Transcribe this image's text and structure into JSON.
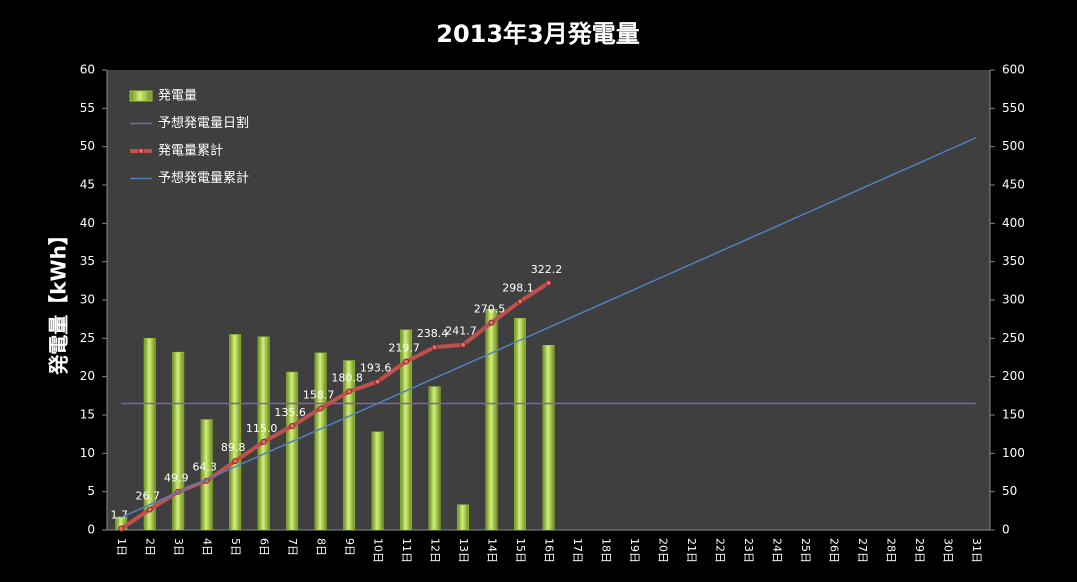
{
  "chart_data": {
    "type": "bar-line",
    "title": "2013年3月発電量",
    "y_label": "発電量【kWh】",
    "categories": [
      "1日",
      "2日",
      "3日",
      "4日",
      "5日",
      "6日",
      "7日",
      "8日",
      "9日",
      "10日",
      "11日",
      "12日",
      "13日",
      "14日",
      "15日",
      "16日",
      "17日",
      "18日",
      "19日",
      "20日",
      "21日",
      "22日",
      "23日",
      "24日",
      "25日",
      "26日",
      "27日",
      "28日",
      "29日",
      "30日",
      "31日"
    ],
    "ylim": [
      0,
      60
    ],
    "yticks": [
      0,
      5,
      10,
      15,
      20,
      25,
      30,
      35,
      40,
      45,
      50,
      55,
      60
    ],
    "y2lim": [
      0,
      600
    ],
    "y2ticks": [
      0,
      50,
      100,
      150,
      200,
      250,
      300,
      350,
      400,
      450,
      500,
      550,
      600
    ],
    "legend": "top-left",
    "series": [
      {
        "name": "発電量",
        "kind": "bar",
        "color": "#9acd32",
        "values": [
          1.7,
          25.0,
          23.2,
          14.4,
          25.5,
          25.2,
          20.6,
          23.1,
          22.1,
          12.8,
          26.1,
          18.7,
          3.3,
          28.8,
          27.6,
          24.1,
          null,
          null,
          null,
          null,
          null,
          null,
          null,
          null,
          null,
          null,
          null,
          null,
          null,
          null,
          null
        ]
      },
      {
        "name": "予想発電量日割",
        "kind": "line",
        "color": "#8064a2",
        "values": [
          16.5,
          16.5,
          16.5,
          16.5,
          16.5,
          16.5,
          16.5,
          16.5,
          16.5,
          16.5,
          16.5,
          16.5,
          16.5,
          16.5,
          16.5,
          16.5,
          16.5,
          16.5,
          16.5,
          16.5,
          16.5,
          16.5,
          16.5,
          16.5,
          16.5,
          16.5,
          16.5,
          16.5,
          16.5,
          16.5,
          16.5
        ]
      },
      {
        "name": "発電量累計",
        "kind": "line",
        "axis": "y2",
        "color": "#c0504d",
        "markers": true,
        "values": [
          1.7,
          26.7,
          49.9,
          64.3,
          89.8,
          115.0,
          135.6,
          158.7,
          180.8,
          193.6,
          219.7,
          238.4,
          241.7,
          270.5,
          298.1,
          322.2,
          null,
          null,
          null,
          null,
          null,
          null,
          null,
          null,
          null,
          null,
          null,
          null,
          null,
          null,
          null
        ],
        "value_labels": [
          "1.7",
          "26.7",
          "49.9",
          "64.3",
          "89.8",
          "115.0",
          "135.6",
          "158.7",
          "180.8",
          "193.6",
          "219.7",
          "238.4",
          "241.7",
          "270.5",
          "298.1",
          "322.2",
          null,
          null,
          null,
          null,
          null,
          null,
          null,
          null,
          null,
          null,
          null,
          null,
          null,
          null,
          null
        ]
      },
      {
        "name": "予想発電量累計",
        "kind": "line",
        "axis": "y2",
        "color": "#4f81bd",
        "values": [
          16.5,
          33,
          49.5,
          66,
          82.5,
          99,
          115.5,
          132,
          148.5,
          165,
          181.5,
          198,
          214.5,
          231,
          247.5,
          264,
          280.5,
          297,
          313.5,
          330,
          346.5,
          363,
          379.5,
          396,
          412.5,
          429,
          445.5,
          462,
          478.5,
          495,
          511.5
        ]
      }
    ]
  }
}
